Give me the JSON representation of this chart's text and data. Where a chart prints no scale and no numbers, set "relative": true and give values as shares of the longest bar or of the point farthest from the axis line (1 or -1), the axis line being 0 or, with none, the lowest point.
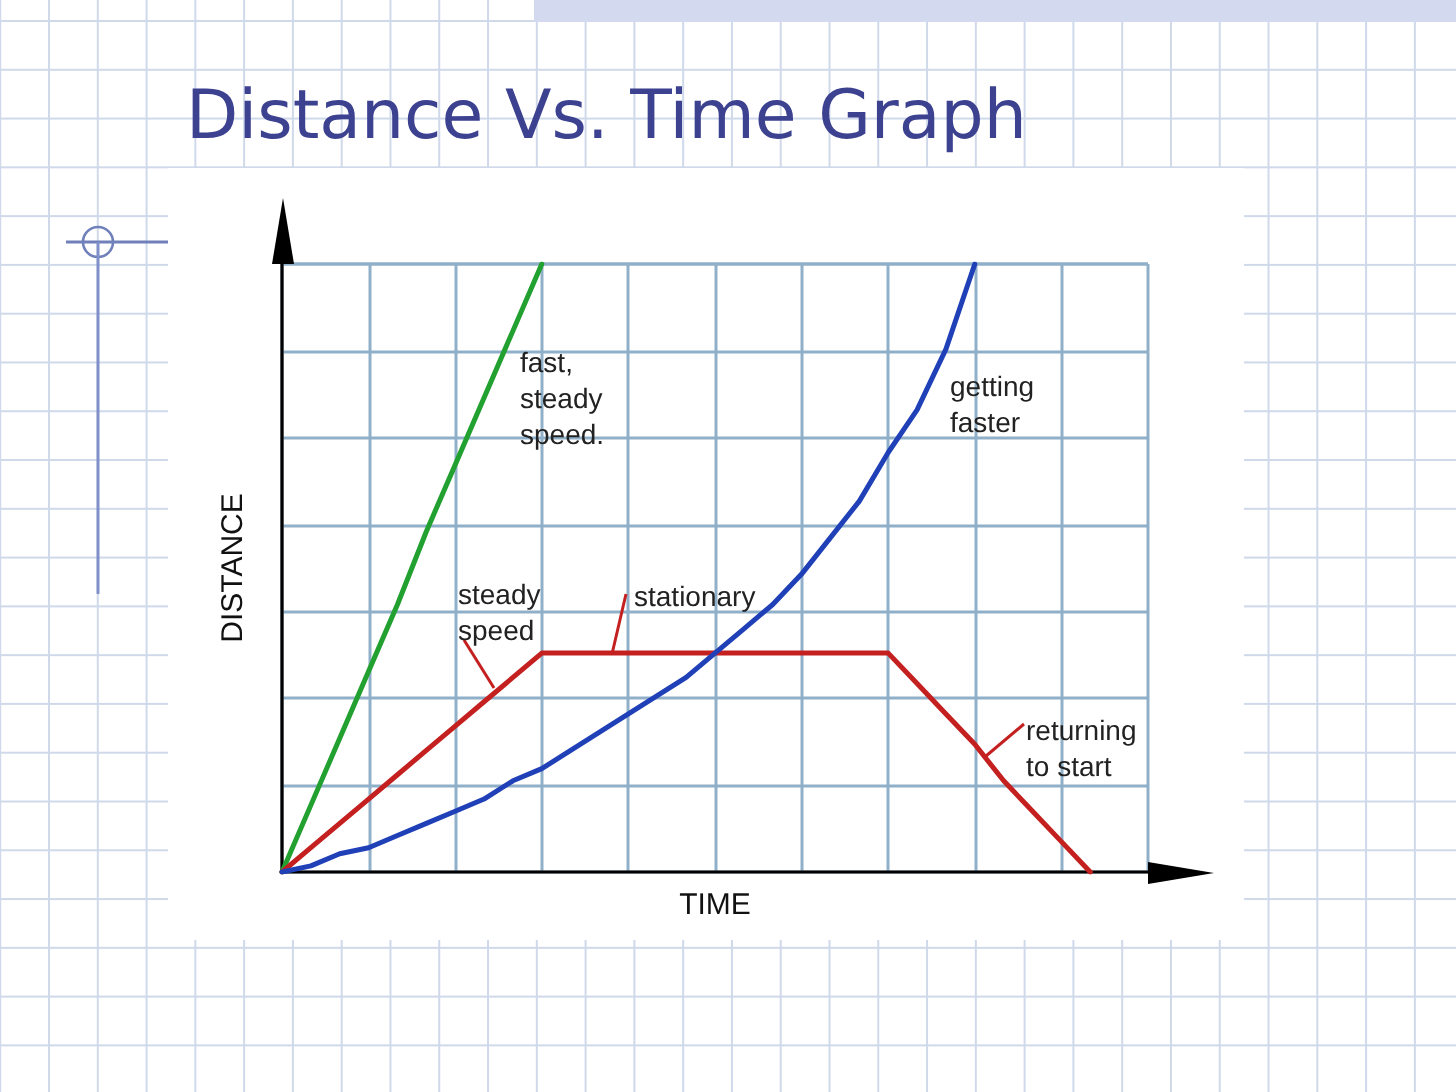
{
  "chart_data": {
    "type": "line",
    "title": "Distance Vs. Time Graph",
    "xlabel": "TIME",
    "ylabel": "DISTANCE",
    "relative": true,
    "tick_labels": false,
    "grid": true,
    "categories": [
      null,
      null,
      null,
      null,
      null,
      null,
      null,
      null,
      null,
      null,
      null,
      null,
      null,
      null,
      null,
      null,
      null,
      null,
      null,
      null,
      null,
      null,
      null,
      null,
      null,
      null,
      null,
      null,
      null,
      null,
      null
    ],
    "series": [
      {
        "color": "#22a030",
        "values": [
          0,
          0.11,
          0.22,
          0.33,
          0.44,
          0.56,
          0.67,
          0.78,
          0.89,
          1,
          null,
          null,
          null,
          null,
          null,
          null,
          null,
          null,
          null,
          null,
          null,
          null,
          null,
          null,
          null,
          null,
          null,
          null,
          null,
          null,
          null
        ]
      },
      {
        "color": "#c42020",
        "values": [
          0,
          0.04,
          0.08,
          0.12,
          0.16,
          0.2,
          0.24,
          0.28,
          0.32,
          0.36,
          0.36,
          0.36,
          0.36,
          0.36,
          0.36,
          0.36,
          0.36,
          0.36,
          0.36,
          0.36,
          0.36,
          0.36,
          0.31,
          0.26,
          0.21,
          0.15,
          0.1,
          0.05,
          0,
          null,
          null
        ]
      },
      {
        "color": "#2040b8",
        "values": [
          0,
          0.01,
          0.03,
          0.04,
          0.06,
          0.08,
          0.1,
          0.12,
          0.15,
          0.17,
          0.2,
          0.23,
          0.26,
          0.29,
          0.32,
          0.36,
          0.4,
          0.44,
          0.49,
          0.55,
          0.61,
          0.69,
          0.76,
          0.86,
          1,
          null,
          null,
          null,
          null,
          null,
          null
        ]
      }
    ],
    "annotations": [
      "fast, steady speed.",
      "getting faster",
      "steady speed",
      "stationary",
      "returning to start"
    ]
  }
}
